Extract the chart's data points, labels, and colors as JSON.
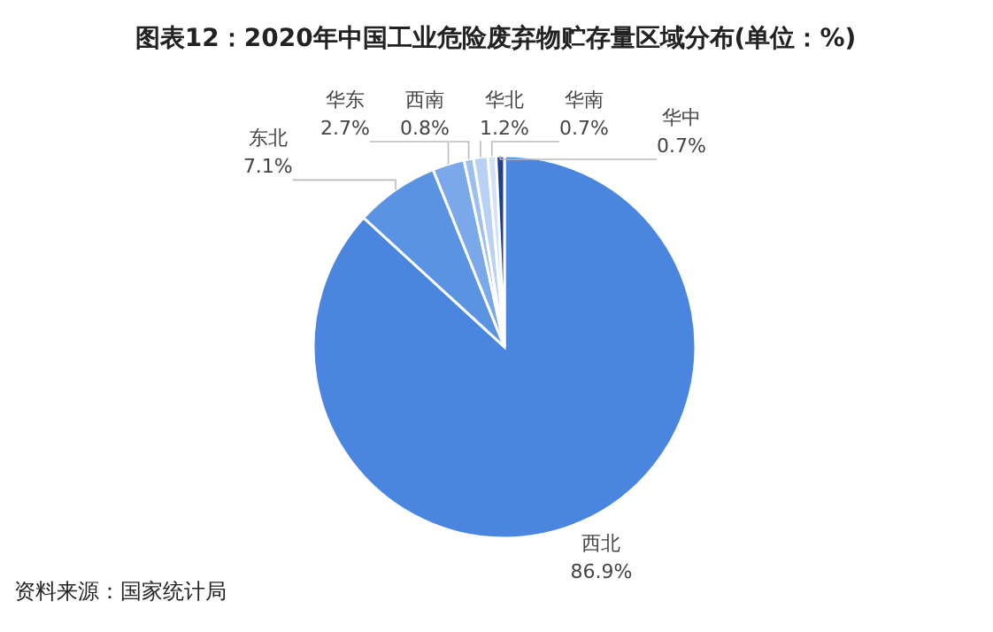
{
  "chart_data": {
    "type": "pie",
    "title": "图表12：2020年中国工业危险废弃物贮存量区域分布(单位：%)",
    "categories": [
      "西北",
      "东北",
      "华东",
      "西南",
      "华北",
      "华南",
      "华中"
    ],
    "values": [
      86.9,
      7.1,
      2.7,
      0.8,
      1.2,
      0.7,
      0.7
    ],
    "colors": [
      "#4a86e0",
      "#5b93e3",
      "#7aa8ea",
      "#9dbff0",
      "#b9d1f4",
      "#d2e1f8",
      "#1f3f8f"
    ],
    "value_labels": [
      "86.9%",
      "7.1%",
      "2.7%",
      "0.8%",
      "1.2%",
      "0.7%",
      "0.7%"
    ],
    "annotations": [
      "资料来源：国家统计局"
    ]
  }
}
